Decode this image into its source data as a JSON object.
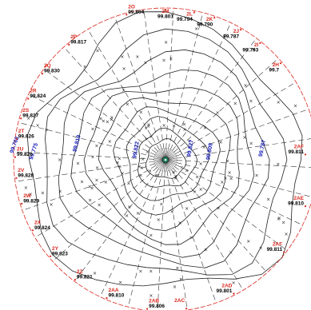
{
  "colors": {
    "boundary": "#d8281e",
    "point_name": "#d8281e",
    "elevation": "#000000",
    "contour": "#222222",
    "radial": "#333333",
    "contour_label": "#1a23b8",
    "center": "#1a7a5a"
  },
  "boundary_points": [
    {
      "name": "2M",
      "elev": "99.801"
    },
    {
      "name": "2L",
      "elev": "99.794"
    },
    {
      "name": "2K",
      "elev": "99.790"
    },
    {
      "name": "2J",
      "elev": "99.787"
    },
    {
      "name": "2I",
      "elev": "99.793"
    },
    {
      "name": "2H",
      "elev": "99.7"
    },
    {
      "name": "2AF",
      "elev": "99.811"
    },
    {
      "name": "2AE",
      "elev": "99.810"
    },
    {
      "name": "2AF",
      "elev": "99.811"
    },
    {
      "name": "2AD",
      "elev": "99.801"
    },
    {
      "name": "2AC",
      "elev": ""
    },
    {
      "name": "2AB",
      "elev": "99.806"
    },
    {
      "name": "2AA",
      "elev": "99.810"
    },
    {
      "name": "2Z",
      "elev": "99.821"
    },
    {
      "name": "2Y",
      "elev": "99.823"
    },
    {
      "name": "2X",
      "elev": "99.824"
    },
    {
      "name": "2W",
      "elev": "99.829"
    },
    {
      "name": "2V",
      "elev": "99.828"
    },
    {
      "name": "2U",
      "elev": "99.826"
    },
    {
      "name": "2T",
      "elev": "99.826"
    },
    {
      "name": "2S",
      "elev": "99.827"
    },
    {
      "name": "2R",
      "elev": "99.824"
    },
    {
      "name": "2Q",
      "elev": "99.830"
    },
    {
      "name": "2P",
      "elev": "99.817"
    },
    {
      "name": "2O",
      "elev": "99.804"
    }
  ],
  "contour_labels": [
    {
      "text": "99.768"
    },
    {
      "text": "99.775"
    },
    {
      "text": "99.819"
    },
    {
      "text": "99.822"
    },
    {
      "text": "99.827"
    },
    {
      "text": "99.809"
    },
    {
      "text": "99.787"
    }
  ]
}
